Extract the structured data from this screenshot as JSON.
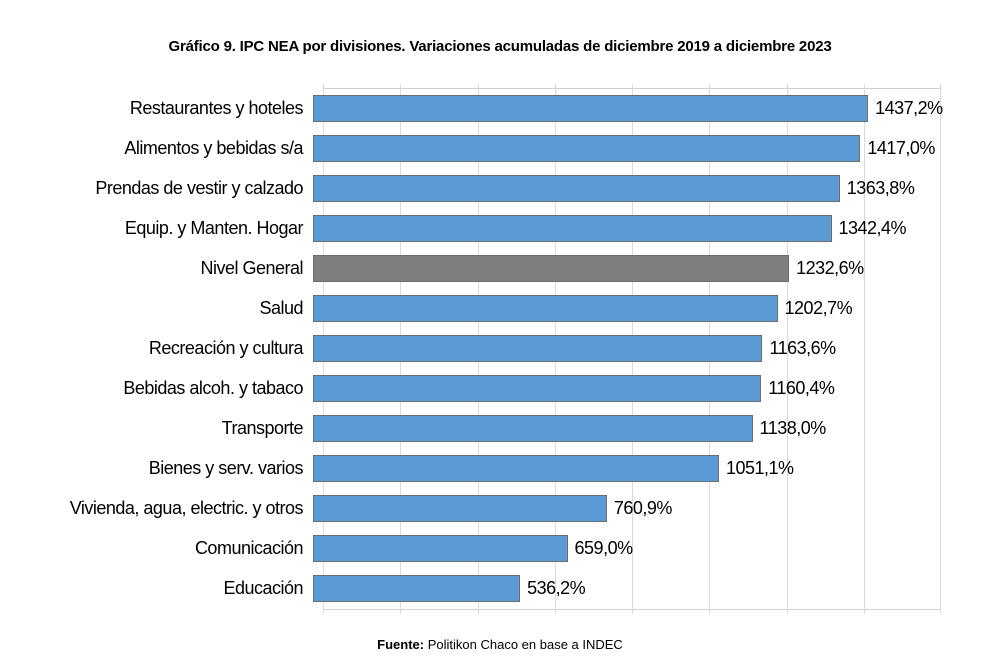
{
  "title": "Gráfico 9. IPC NEA por divisiones. Variaciones acumuladas de diciembre 2019 a diciembre 2023",
  "source": {
    "label": "Fuente:",
    "text": " Politikon Chaco en base a INDEC"
  },
  "chart_data": {
    "type": "bar",
    "orientation": "horizontal",
    "title": "Gráfico 9. IPC NEA por divisiones. Variaciones acumuladas de diciembre 2019 a diciembre 2023",
    "categories": [
      "Restaurantes y hoteles",
      "Alimentos y bebidas s/a",
      "Prendas de vestir y calzado",
      "Equip. y Manten. Hogar",
      "Nivel General",
      "Salud",
      "Recreación y cultura",
      "Bebidas alcoh. y tabaco",
      "Transporte",
      "Bienes y serv. varios",
      "Vivienda, agua, electric. y otros",
      "Comunicación",
      "Educación"
    ],
    "values": [
      1437.2,
      1417.0,
      1363.8,
      1342.4,
      1232.6,
      1202.7,
      1163.6,
      1160.4,
      1138.0,
      1051.1,
      760.9,
      659.0,
      536.2
    ],
    "value_labels": [
      "1437,2%",
      "1417,0%",
      "1363,8%",
      "1342,4%",
      "1232,6%",
      "1202,7%",
      "1163,6%",
      "1160,4%",
      "1138,0%",
      "1051,1%",
      "760,9%",
      "659,0%",
      "536,2%"
    ],
    "highlight_category": "Nivel General",
    "highlight_index": 4,
    "xlabel": "",
    "ylabel": "",
    "xlim": [
      0,
      1600
    ],
    "grid_step": 200,
    "grid": "vertical",
    "legend": "none",
    "colors": {
      "bar": "#5b9bd5",
      "highlight": "#7f7f7f",
      "bar_border": "#6d6d6d",
      "gridline": "#d9d9d9",
      "text": "#000000"
    }
  }
}
